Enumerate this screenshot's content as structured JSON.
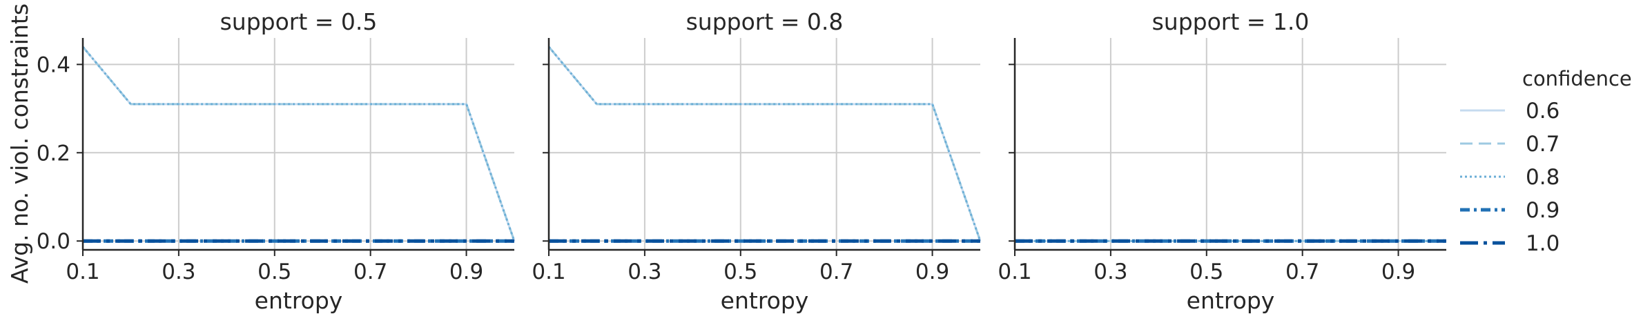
{
  "chart_data": {
    "type": "line",
    "figure": "faceted",
    "facet_variable": "support",
    "panels": [
      {
        "title": "support = 0.5",
        "x": [
          0.1,
          0.2,
          0.3,
          0.4,
          0.5,
          0.6,
          0.7,
          0.8,
          0.9,
          1.0
        ],
        "series": [
          {
            "name": "0.6",
            "values": [
              0.44,
              0.31,
              0.31,
              0.31,
              0.31,
              0.31,
              0.31,
              0.31,
              0.31,
              0.0
            ]
          },
          {
            "name": "0.7",
            "values": [
              0.44,
              0.31,
              0.31,
              0.31,
              0.31,
              0.31,
              0.31,
              0.31,
              0.31,
              0.0
            ]
          },
          {
            "name": "0.8",
            "values": [
              0.44,
              0.31,
              0.31,
              0.31,
              0.31,
              0.31,
              0.31,
              0.31,
              0.31,
              0.0
            ]
          },
          {
            "name": "0.9",
            "values": [
              0.0,
              0.0,
              0.0,
              0.0,
              0.0,
              0.0,
              0.0,
              0.0,
              0.0,
              0.0
            ]
          },
          {
            "name": "1.0",
            "values": [
              0.0,
              0.0,
              0.0,
              0.0,
              0.0,
              0.0,
              0.0,
              0.0,
              0.0,
              0.0
            ]
          }
        ]
      },
      {
        "title": "support = 0.8",
        "x": [
          0.1,
          0.2,
          0.3,
          0.4,
          0.5,
          0.6,
          0.7,
          0.8,
          0.9,
          1.0
        ],
        "series": [
          {
            "name": "0.6",
            "values": [
              0.44,
              0.31,
              0.31,
              0.31,
              0.31,
              0.31,
              0.31,
              0.31,
              0.31,
              0.0
            ]
          },
          {
            "name": "0.7",
            "values": [
              0.44,
              0.31,
              0.31,
              0.31,
              0.31,
              0.31,
              0.31,
              0.31,
              0.31,
              0.0
            ]
          },
          {
            "name": "0.8",
            "values": [
              0.44,
              0.31,
              0.31,
              0.31,
              0.31,
              0.31,
              0.31,
              0.31,
              0.31,
              0.0
            ]
          },
          {
            "name": "0.9",
            "values": [
              0.0,
              0.0,
              0.0,
              0.0,
              0.0,
              0.0,
              0.0,
              0.0,
              0.0,
              0.0
            ]
          },
          {
            "name": "1.0",
            "values": [
              0.0,
              0.0,
              0.0,
              0.0,
              0.0,
              0.0,
              0.0,
              0.0,
              0.0,
              0.0
            ]
          }
        ]
      },
      {
        "title": "support = 1.0",
        "x": [
          0.1,
          0.2,
          0.3,
          0.4,
          0.5,
          0.6,
          0.7,
          0.8,
          0.9,
          1.0
        ],
        "series": [
          {
            "name": "0.6",
            "values": [
              0.0,
              0.0,
              0.0,
              0.0,
              0.0,
              0.0,
              0.0,
              0.0,
              0.0,
              0.0
            ]
          },
          {
            "name": "0.7",
            "values": [
              0.0,
              0.0,
              0.0,
              0.0,
              0.0,
              0.0,
              0.0,
              0.0,
              0.0,
              0.0
            ]
          },
          {
            "name": "0.8",
            "values": [
              0.0,
              0.0,
              0.0,
              0.0,
              0.0,
              0.0,
              0.0,
              0.0,
              0.0,
              0.0
            ]
          },
          {
            "name": "0.9",
            "values": [
              0.0,
              0.0,
              0.0,
              0.0,
              0.0,
              0.0,
              0.0,
              0.0,
              0.0,
              0.0
            ]
          },
          {
            "name": "1.0",
            "values": [
              0.0,
              0.0,
              0.0,
              0.0,
              0.0,
              0.0,
              0.0,
              0.0,
              0.0,
              0.0
            ]
          }
        ]
      }
    ],
    "xlabel": "entropy",
    "ylabel": "Avg. no. viol. constraints",
    "xlim": [
      0.1,
      1.0
    ],
    "ylim": [
      -0.02,
      0.46
    ],
    "xticks": [
      "0.1",
      "0.3",
      "0.5",
      "0.7",
      "0.9"
    ],
    "yticks": [
      "0.0",
      "0.2",
      "0.4"
    ],
    "grid": true,
    "legend": {
      "title": "confidence",
      "placement": "right",
      "entries": [
        {
          "label": "0.6",
          "color": "#c6dbef",
          "dash": "solid"
        },
        {
          "label": "0.7",
          "color": "#9ecae1",
          "dash": "dashed"
        },
        {
          "label": "0.8",
          "color": "#6baed6",
          "dash": "dotted"
        },
        {
          "label": "0.9",
          "color": "#2171b5",
          "dash": "dashdot"
        },
        {
          "label": "1.0",
          "color": "#08519c",
          "dash": "longdashdot"
        }
      ]
    }
  }
}
